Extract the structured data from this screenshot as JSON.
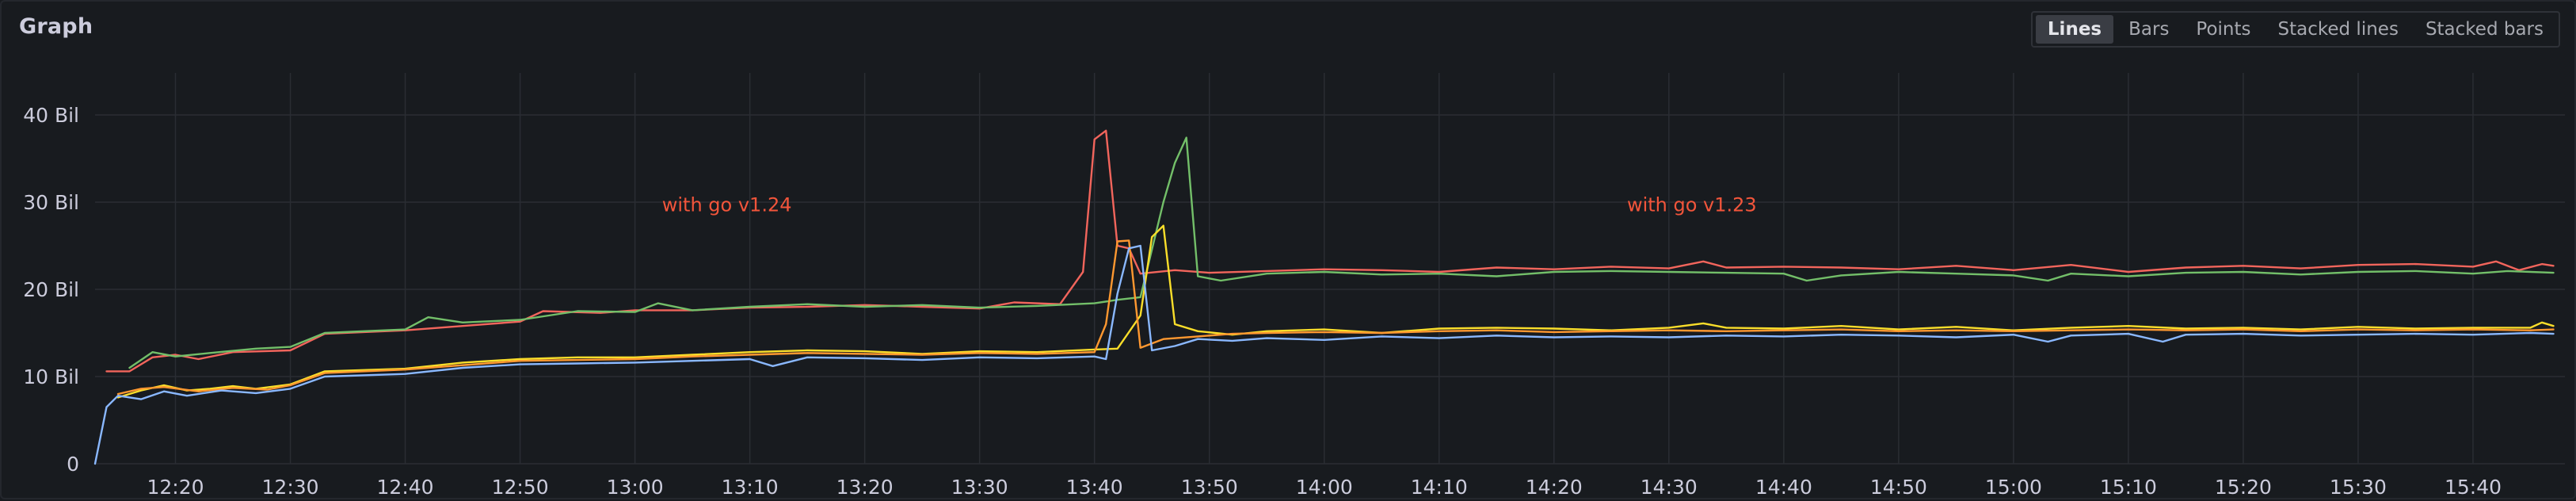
{
  "panel": {
    "title": "Graph"
  },
  "view_modes": [
    {
      "label": "Lines",
      "active": true
    },
    {
      "label": "Bars",
      "active": false
    },
    {
      "label": "Points",
      "active": false
    },
    {
      "label": "Stacked lines",
      "active": false
    },
    {
      "label": "Stacked bars",
      "active": false
    }
  ],
  "chart_data": {
    "type": "line",
    "x_unit": "time of day (HH:MM)",
    "xlim": [
      "12:13",
      "15:48"
    ],
    "ylim": [
      0,
      43
    ],
    "y_unit": "Bil",
    "x_ticks": [
      "12:20",
      "12:30",
      "12:40",
      "12:50",
      "13:00",
      "13:10",
      "13:20",
      "13:30",
      "13:40",
      "13:50",
      "14:00",
      "14:10",
      "14:20",
      "14:30",
      "14:40",
      "14:50",
      "15:00",
      "15:10",
      "15:20",
      "15:30",
      "15:40"
    ],
    "y_ticks": [
      {
        "value": 0,
        "label": "0"
      },
      {
        "value": 10,
        "label": "10 Bil"
      },
      {
        "value": 20,
        "label": "20 Bil"
      },
      {
        "value": 30,
        "label": "30 Bil"
      },
      {
        "value": 40,
        "label": "40 Bil"
      }
    ],
    "grid": true,
    "legend": false,
    "annotations": [
      {
        "text": "with go v1.24",
        "x": "13:08",
        "y": 29.7,
        "color": "#f2553b"
      },
      {
        "text": "with go v1.23",
        "x": "14:32",
        "y": 29.7,
        "color": "#f2553b"
      }
    ],
    "series": [
      {
        "color": "#f2655c",
        "points": [
          [
            "12:14",
            10.6
          ],
          [
            "12:16",
            10.6
          ],
          [
            "12:18",
            12.2
          ],
          [
            "12:20",
            12.5
          ],
          [
            "12:22",
            12.0
          ],
          [
            "12:25",
            12.8
          ],
          [
            "12:30",
            13.0
          ],
          [
            "12:33",
            14.9
          ],
          [
            "12:40",
            15.3
          ],
          [
            "12:45",
            15.8
          ],
          [
            "12:50",
            16.3
          ],
          [
            "12:52",
            17.5
          ],
          [
            "12:57",
            17.3
          ],
          [
            "13:00",
            17.6
          ],
          [
            "13:05",
            17.6
          ],
          [
            "13:10",
            17.9
          ],
          [
            "13:15",
            18.0
          ],
          [
            "13:20",
            18.2
          ],
          [
            "13:25",
            18.0
          ],
          [
            "13:30",
            17.8
          ],
          [
            "13:33",
            18.5
          ],
          [
            "13:37",
            18.3
          ],
          [
            "13:39",
            22.0
          ],
          [
            "13:40",
            37.2
          ],
          [
            "13:41",
            38.2
          ],
          [
            "13:42",
            25.0
          ],
          [
            "13:43",
            24.7
          ],
          [
            "13:44",
            21.8
          ],
          [
            "13:47",
            22.2
          ],
          [
            "13:50",
            21.9
          ],
          [
            "13:55",
            22.1
          ],
          [
            "14:00",
            22.3
          ],
          [
            "14:05",
            22.2
          ],
          [
            "14:10",
            22.0
          ],
          [
            "14:15",
            22.5
          ],
          [
            "14:20",
            22.3
          ],
          [
            "14:25",
            22.6
          ],
          [
            "14:30",
            22.4
          ],
          [
            "14:33",
            23.2
          ],
          [
            "14:35",
            22.5
          ],
          [
            "14:40",
            22.6
          ],
          [
            "14:45",
            22.5
          ],
          [
            "14:50",
            22.3
          ],
          [
            "14:55",
            22.7
          ],
          [
            "15:00",
            22.2
          ],
          [
            "15:05",
            22.8
          ],
          [
            "15:10",
            22.0
          ],
          [
            "15:15",
            22.5
          ],
          [
            "15:20",
            22.7
          ],
          [
            "15:25",
            22.4
          ],
          [
            "15:30",
            22.8
          ],
          [
            "15:35",
            22.9
          ],
          [
            "15:40",
            22.6
          ],
          [
            "15:42",
            23.2
          ],
          [
            "15:44",
            22.2
          ],
          [
            "15:46",
            22.9
          ],
          [
            "15:47",
            22.7
          ]
        ]
      },
      {
        "color": "#73bf69",
        "points": [
          [
            "12:16",
            11.0
          ],
          [
            "12:18",
            12.8
          ],
          [
            "12:20",
            12.3
          ],
          [
            "12:23",
            12.7
          ],
          [
            "12:27",
            13.2
          ],
          [
            "12:30",
            13.4
          ],
          [
            "12:33",
            15.0
          ],
          [
            "12:40",
            15.4
          ],
          [
            "12:42",
            16.8
          ],
          [
            "12:45",
            16.2
          ],
          [
            "12:50",
            16.5
          ],
          [
            "12:55",
            17.5
          ],
          [
            "13:00",
            17.4
          ],
          [
            "13:02",
            18.4
          ],
          [
            "13:05",
            17.6
          ],
          [
            "13:10",
            18.0
          ],
          [
            "13:15",
            18.3
          ],
          [
            "13:20",
            18.0
          ],
          [
            "13:25",
            18.2
          ],
          [
            "13:30",
            17.9
          ],
          [
            "13:35",
            18.1
          ],
          [
            "13:40",
            18.4
          ],
          [
            "13:42",
            18.8
          ],
          [
            "13:44",
            19.1
          ],
          [
            "13:46",
            30.0
          ],
          [
            "13:47",
            34.5
          ],
          [
            "13:48",
            37.4
          ],
          [
            "13:49",
            21.5
          ],
          [
            "13:51",
            21.0
          ],
          [
            "13:55",
            21.8
          ],
          [
            "14:00",
            22.0
          ],
          [
            "14:05",
            21.7
          ],
          [
            "14:10",
            21.8
          ],
          [
            "14:15",
            21.5
          ],
          [
            "14:20",
            22.0
          ],
          [
            "14:25",
            22.1
          ],
          [
            "14:30",
            22.0
          ],
          [
            "14:35",
            21.9
          ],
          [
            "14:40",
            21.8
          ],
          [
            "14:42",
            21.0
          ],
          [
            "14:45",
            21.6
          ],
          [
            "14:50",
            22.0
          ],
          [
            "14:55",
            21.8
          ],
          [
            "15:00",
            21.6
          ],
          [
            "15:03",
            21.0
          ],
          [
            "15:05",
            21.8
          ],
          [
            "15:10",
            21.5
          ],
          [
            "15:15",
            21.9
          ],
          [
            "15:20",
            22.0
          ],
          [
            "15:25",
            21.7
          ],
          [
            "15:30",
            22.0
          ],
          [
            "15:35",
            22.1
          ],
          [
            "15:40",
            21.8
          ],
          [
            "15:43",
            22.1
          ],
          [
            "15:47",
            21.9
          ]
        ]
      },
      {
        "color": "#fade2a",
        "points": [
          [
            "12:15",
            7.6
          ],
          [
            "12:17",
            8.4
          ],
          [
            "12:19",
            9.0
          ],
          [
            "12:21",
            8.4
          ],
          [
            "12:23",
            8.6
          ],
          [
            "12:25",
            8.9
          ],
          [
            "12:27",
            8.6
          ],
          [
            "12:30",
            9.1
          ],
          [
            "12:33",
            10.6
          ],
          [
            "12:40",
            10.9
          ],
          [
            "12:45",
            11.6
          ],
          [
            "12:50",
            12.0
          ],
          [
            "12:55",
            12.2
          ],
          [
            "13:00",
            12.2
          ],
          [
            "13:05",
            12.5
          ],
          [
            "13:10",
            12.8
          ],
          [
            "13:15",
            13.0
          ],
          [
            "13:20",
            12.9
          ],
          [
            "13:25",
            12.6
          ],
          [
            "13:30",
            12.9
          ],
          [
            "13:35",
            12.8
          ],
          [
            "13:40",
            13.1
          ],
          [
            "13:42",
            13.2
          ],
          [
            "13:44",
            17.0
          ],
          [
            "13:45",
            26.0
          ],
          [
            "13:46",
            27.3
          ],
          [
            "13:47",
            16.0
          ],
          [
            "13:49",
            15.2
          ],
          [
            "13:52",
            14.8
          ],
          [
            "13:55",
            15.2
          ],
          [
            "14:00",
            15.4
          ],
          [
            "14:05",
            15.0
          ],
          [
            "14:10",
            15.5
          ],
          [
            "14:15",
            15.6
          ],
          [
            "14:20",
            15.5
          ],
          [
            "14:25",
            15.3
          ],
          [
            "14:30",
            15.6
          ],
          [
            "14:33",
            16.1
          ],
          [
            "14:35",
            15.6
          ],
          [
            "14:40",
            15.5
          ],
          [
            "14:45",
            15.8
          ],
          [
            "14:50",
            15.4
          ],
          [
            "14:55",
            15.7
          ],
          [
            "15:00",
            15.3
          ],
          [
            "15:05",
            15.6
          ],
          [
            "15:10",
            15.8
          ],
          [
            "15:15",
            15.5
          ],
          [
            "15:20",
            15.6
          ],
          [
            "15:25",
            15.4
          ],
          [
            "15:30",
            15.7
          ],
          [
            "15:35",
            15.5
          ],
          [
            "15:40",
            15.6
          ],
          [
            "15:45",
            15.6
          ],
          [
            "15:46",
            16.2
          ],
          [
            "15:47",
            15.8
          ]
        ]
      },
      {
        "color": "#ff9830",
        "points": [
          [
            "12:15",
            8.0
          ],
          [
            "12:17",
            8.6
          ],
          [
            "12:19",
            8.8
          ],
          [
            "12:22",
            8.3
          ],
          [
            "12:25",
            8.7
          ],
          [
            "12:28",
            8.5
          ],
          [
            "12:30",
            9.0
          ],
          [
            "12:33",
            10.4
          ],
          [
            "12:40",
            10.8
          ],
          [
            "12:45",
            11.3
          ],
          [
            "12:50",
            11.8
          ],
          [
            "12:55",
            11.9
          ],
          [
            "13:00",
            12.0
          ],
          [
            "13:05",
            12.3
          ],
          [
            "13:10",
            12.5
          ],
          [
            "13:15",
            12.7
          ],
          [
            "13:20",
            12.6
          ],
          [
            "13:25",
            12.5
          ],
          [
            "13:30",
            12.7
          ],
          [
            "13:35",
            12.6
          ],
          [
            "13:40",
            12.8
          ],
          [
            "13:41",
            16.0
          ],
          [
            "13:42",
            25.5
          ],
          [
            "13:43",
            25.6
          ],
          [
            "13:44",
            13.3
          ],
          [
            "13:46",
            14.3
          ],
          [
            "13:49",
            14.6
          ],
          [
            "13:52",
            14.9
          ],
          [
            "13:55",
            15.0
          ],
          [
            "14:00",
            15.1
          ],
          [
            "14:05",
            15.0
          ],
          [
            "14:10",
            15.2
          ],
          [
            "14:15",
            15.3
          ],
          [
            "14:20",
            15.1
          ],
          [
            "14:25",
            15.2
          ],
          [
            "14:30",
            15.3
          ],
          [
            "14:35",
            15.2
          ],
          [
            "14:40",
            15.3
          ],
          [
            "14:45",
            15.4
          ],
          [
            "14:50",
            15.2
          ],
          [
            "14:55",
            15.3
          ],
          [
            "15:00",
            15.2
          ],
          [
            "15:05",
            15.3
          ],
          [
            "15:10",
            15.4
          ],
          [
            "15:15",
            15.3
          ],
          [
            "15:20",
            15.4
          ],
          [
            "15:25",
            15.2
          ],
          [
            "15:30",
            15.4
          ],
          [
            "15:35",
            15.3
          ],
          [
            "15:40",
            15.4
          ],
          [
            "15:45",
            15.3
          ],
          [
            "15:47",
            15.4
          ]
        ]
      },
      {
        "color": "#8ab8ff",
        "points": [
          [
            "12:13",
            0.0
          ],
          [
            "12:14",
            6.5
          ],
          [
            "12:15",
            7.8
          ],
          [
            "12:17",
            7.4
          ],
          [
            "12:19",
            8.3
          ],
          [
            "12:21",
            7.8
          ],
          [
            "12:24",
            8.4
          ],
          [
            "12:27",
            8.1
          ],
          [
            "12:30",
            8.6
          ],
          [
            "12:33",
            10.0
          ],
          [
            "12:40",
            10.3
          ],
          [
            "12:45",
            11.0
          ],
          [
            "12:50",
            11.4
          ],
          [
            "12:55",
            11.5
          ],
          [
            "13:00",
            11.6
          ],
          [
            "13:05",
            11.8
          ],
          [
            "13:10",
            12.0
          ],
          [
            "13:12",
            11.2
          ],
          [
            "13:15",
            12.2
          ],
          [
            "13:20",
            12.1
          ],
          [
            "13:25",
            11.9
          ],
          [
            "13:30",
            12.2
          ],
          [
            "13:35",
            12.1
          ],
          [
            "13:40",
            12.3
          ],
          [
            "13:41",
            12.0
          ],
          [
            "13:42",
            19.5
          ],
          [
            "13:43",
            24.7
          ],
          [
            "13:44",
            25.0
          ],
          [
            "13:45",
            13.0
          ],
          [
            "13:47",
            13.5
          ],
          [
            "13:49",
            14.3
          ],
          [
            "13:52",
            14.1
          ],
          [
            "13:55",
            14.4
          ],
          [
            "14:00",
            14.2
          ],
          [
            "14:05",
            14.6
          ],
          [
            "14:10",
            14.4
          ],
          [
            "14:15",
            14.7
          ],
          [
            "14:20",
            14.5
          ],
          [
            "14:25",
            14.6
          ],
          [
            "14:30",
            14.5
          ],
          [
            "14:35",
            14.7
          ],
          [
            "14:40",
            14.6
          ],
          [
            "14:45",
            14.8
          ],
          [
            "14:50",
            14.7
          ],
          [
            "14:55",
            14.5
          ],
          [
            "15:00",
            14.8
          ],
          [
            "15:03",
            14.0
          ],
          [
            "15:05",
            14.7
          ],
          [
            "15:10",
            14.9
          ],
          [
            "15:13",
            14.0
          ],
          [
            "15:15",
            14.8
          ],
          [
            "15:20",
            14.9
          ],
          [
            "15:25",
            14.7
          ],
          [
            "15:30",
            14.8
          ],
          [
            "15:35",
            14.9
          ],
          [
            "15:40",
            14.8
          ],
          [
            "15:45",
            15.0
          ],
          [
            "15:47",
            14.9
          ]
        ]
      }
    ]
  }
}
